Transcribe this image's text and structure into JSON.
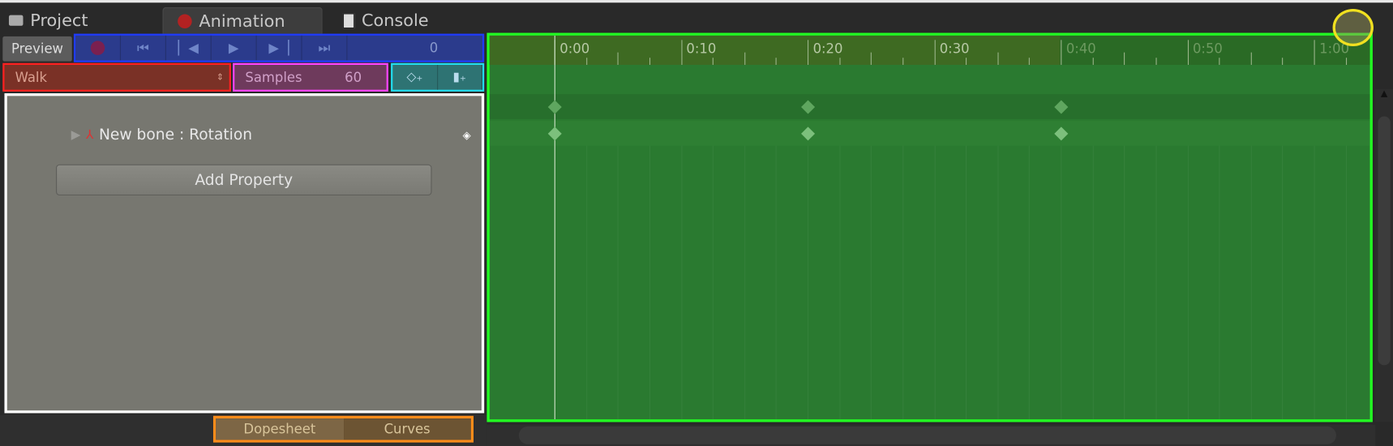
{
  "tabs": [
    {
      "label": "Project",
      "icon": "folder-icon"
    },
    {
      "label": "Animation",
      "icon": "record-dot-icon",
      "selected": true
    },
    {
      "label": "Console",
      "icon": "console-icon"
    }
  ],
  "toolbar": {
    "preview_label": "Preview",
    "frame_value": "0",
    "transport": [
      "record",
      "first-key",
      "prev-key",
      "play",
      "next-key",
      "last-key"
    ]
  },
  "clip": {
    "selected": "Walk"
  },
  "samples": {
    "label": "Samples",
    "value": "60"
  },
  "properties": [
    {
      "label": "New bone : Rotation"
    }
  ],
  "add_property_label": "Add Property",
  "modes": {
    "dopesheet": "Dopesheet",
    "curves": "Curves"
  },
  "ruler": {
    "labels": [
      "0:00",
      "0:10",
      "0:20",
      "0:30",
      "0:40",
      "0:50",
      "1:00"
    ]
  },
  "keyframes_at": [
    "0:00",
    "0:20",
    "0:40"
  ],
  "colors": {
    "timeline": "#2a7a30",
    "left_panel": "#777770",
    "transport": "#2b3b8c",
    "clip": "#7a3126",
    "samples": "#6e3a5c",
    "add_keys": "#2e7373",
    "modes": "#7a6240"
  }
}
